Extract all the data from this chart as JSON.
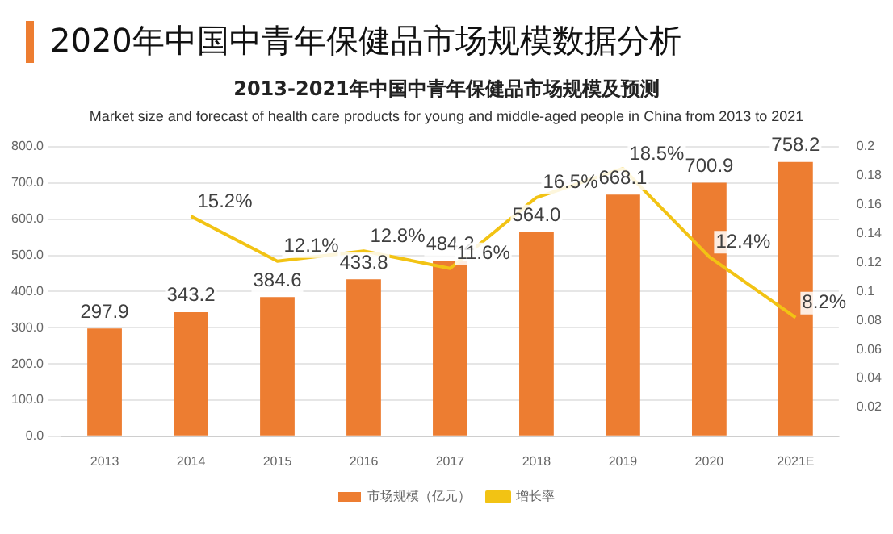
{
  "chart_data": {
    "type": "bar",
    "title": "2020年中国中青年保健品市场规模数据分析",
    "subtitle": "2013-2021年中国中青年保健品市场规模及预测",
    "annotations": [
      "Market size and forecast of health care products for young and middle-aged people in China from 2013 to 2021"
    ],
    "categories": [
      "2013",
      "2014",
      "2015",
      "2016",
      "2017",
      "2018",
      "2019",
      "2020",
      "2021E"
    ],
    "series": [
      {
        "name": "市场规模（亿元）",
        "color": "#ed7d31",
        "values": [
          297.9,
          343.2,
          384.6,
          433.8,
          484.2,
          564.0,
          668.1,
          700.9,
          758.2
        ],
        "value_labels": [
          "297.9",
          "343.2",
          "384.6",
          "433.8",
          "484.2",
          "564.0",
          "668.1",
          "700.9",
          "758.2"
        ]
      },
      {
        "name": "增长率",
        "type": "line",
        "axis": "y2",
        "color": "#f2c314",
        "values": [
          null,
          0.152,
          0.121,
          0.128,
          0.116,
          0.165,
          0.185,
          0.124,
          0.082
        ],
        "value_labels": [
          null,
          "15.2%",
          "12.1%",
          "12.8%",
          "11.6%",
          "16.5%",
          "18.5%",
          "12.4%",
          "8.2%"
        ]
      }
    ],
    "ylim": [
      0,
      800
    ],
    "yticks": [
      {
        "value": 0,
        "label": "0.0"
      },
      {
        "value": 100,
        "label": "100.0"
      },
      {
        "value": 200,
        "label": "200.0"
      },
      {
        "value": 300,
        "label": "300.0"
      },
      {
        "value": 400,
        "label": "400.0"
      },
      {
        "value": 500,
        "label": "500.0"
      },
      {
        "value": 600,
        "label": "600.0"
      },
      {
        "value": 700,
        "label": "700.0"
      },
      {
        "value": 800,
        "label": "800.0"
      }
    ],
    "y2lim": [
      0,
      0.2
    ],
    "y2ticks": [
      0.02,
      0.04,
      0.06,
      0.08,
      0.1,
      0.12,
      0.14,
      0.16,
      0.18,
      0.2
    ],
    "grid": "y",
    "legend": "bottom",
    "marker": "none"
  }
}
